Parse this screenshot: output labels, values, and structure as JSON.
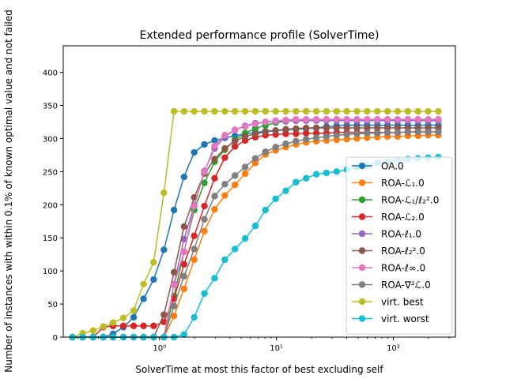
{
  "chart_data": {
    "type": "line",
    "title": "Extended performance profile (SolverTime)",
    "xlabel": "SolverTime at most this factor of best excluding self",
    "ylabel": "Number of instances with within 0.1% of known optimal value and not failed",
    "xscale": "log",
    "xlim": [
      0.15,
      340
    ],
    "ylim": [
      0,
      440
    ],
    "xticks": [
      {
        "value": 1,
        "label": "10⁰"
      },
      {
        "value": 10,
        "label": "10¹"
      },
      {
        "value": 100,
        "label": "10²"
      }
    ],
    "yticks": [
      0,
      50,
      100,
      150,
      200,
      250,
      300,
      350,
      400
    ],
    "legend_position": "lower right",
    "x": [
      0.18,
      0.22,
      0.27,
      0.33,
      0.4,
      0.49,
      0.6,
      0.73,
      0.89,
      1.09,
      1.33,
      1.62,
      1.98,
      2.42,
      2.96,
      3.62,
      4.42,
      5.4,
      6.6,
      8.06,
      9.85,
      12.03,
      14.7,
      17.96,
      21.94,
      26.81,
      32.76,
      40.02,
      48.9,
      59.74,
      72.99,
      89.18,
      108.96,
      133.13,
      162.65,
      198.72,
      242.8
    ],
    "series": [
      {
        "name": "OA.0",
        "color": "#1f77b4",
        "values": [
          0,
          0,
          0,
          0,
          5,
          15,
          30,
          58,
          87,
          132,
          192,
          242,
          279,
          291,
          297,
          301,
          304,
          307,
          309,
          311,
          312,
          313,
          314,
          315,
          316,
          318,
          319,
          320,
          320,
          320,
          320,
          320,
          320,
          320,
          320,
          320,
          320
        ]
      },
      {
        "name": "ROA-ℒ₁.0",
        "color": "#ff7f0e",
        "values": [
          0,
          0,
          0,
          0,
          0,
          0,
          0,
          0,
          0,
          0,
          32,
          73,
          117,
          160,
          193,
          214,
          230,
          247,
          263,
          276,
          282,
          287,
          291,
          294,
          296,
          297,
          298,
          299,
          300,
          301,
          302,
          303,
          303,
          304,
          304,
          305,
          305
        ]
      },
      {
        "name": "ROA-ℒ₁/ℓ₂².0",
        "color": "#2ca02c",
        "values": [
          0,
          0,
          0,
          0,
          0,
          0,
          0,
          0,
          0,
          0,
          62,
          129,
          192,
          233,
          265,
          283,
          298,
          308,
          315,
          320,
          324,
          326,
          327,
          328,
          328,
          328,
          328,
          328,
          328,
          328,
          328,
          328,
          328,
          328,
          328,
          328,
          328
        ]
      },
      {
        "name": "ROA-ℒ₂.0",
        "color": "#d62728",
        "values": [
          0,
          0,
          0,
          15,
          17,
          17,
          17,
          17,
          17,
          23,
          58,
          110,
          153,
          198,
          240,
          271,
          288,
          297,
          302,
          305,
          306,
          307,
          307,
          308,
          308,
          308,
          309,
          309,
          309,
          309,
          309,
          309,
          309,
          310,
          310,
          310,
          310
        ]
      },
      {
        "name": "ROA-ℓ₁.0",
        "color": "#9467bd",
        "values": [
          0,
          0,
          0,
          0,
          0,
          0,
          0,
          0,
          0,
          0,
          80,
          148,
          199,
          251,
          285,
          303,
          313,
          319,
          323,
          325,
          326,
          326,
          327,
          327,
          327,
          327,
          327,
          327,
          327,
          327,
          327,
          327,
          327,
          327,
          327,
          327,
          327
        ]
      },
      {
        "name": "ROA-ℓ₂².0",
        "color": "#8c564b",
        "values": [
          0,
          0,
          0,
          0,
          0,
          0,
          0,
          0,
          0,
          34,
          98,
          167,
          211,
          247,
          269,
          285,
          296,
          303,
          307,
          310,
          312,
          314,
          315,
          316,
          316,
          316,
          316,
          316,
          316,
          316,
          316,
          316,
          316,
          316,
          316,
          316,
          316
        ]
      },
      {
        "name": "ROA-ℓ∞.0",
        "color": "#e377c2",
        "values": [
          0,
          0,
          0,
          0,
          0,
          0,
          0,
          0,
          0,
          0,
          79,
          129,
          198,
          250,
          289,
          305,
          313,
          318,
          322,
          325,
          327,
          328,
          329,
          329,
          329,
          329,
          329,
          329,
          329,
          329,
          329,
          329,
          329,
          329,
          329,
          329,
          329
        ]
      },
      {
        "name": "ROA-∇²ℒ.0",
        "color": "#7f7f7f",
        "values": [
          0,
          0,
          0,
          0,
          0,
          0,
          0,
          0,
          0,
          0,
          47,
          92,
          133,
          178,
          213,
          231,
          244,
          257,
          270,
          280,
          287,
          292,
          296,
          299,
          301,
          303,
          305,
          306,
          307,
          308,
          308,
          309,
          309,
          310,
          310,
          310,
          310
        ]
      },
      {
        "name": "virt. best",
        "color": "#bcbd22",
        "values": [
          0,
          6,
          10,
          16,
          22,
          29,
          40,
          80,
          113,
          218,
          341,
          341,
          341,
          341,
          341,
          341,
          341,
          341,
          341,
          341,
          341,
          341,
          341,
          341,
          341,
          341,
          341,
          341,
          341,
          341,
          341,
          341,
          341,
          341,
          341,
          341,
          341
        ]
      },
      {
        "name": "virt. worst",
        "color": "#17becf",
        "values": [
          0,
          0,
          0,
          0,
          0,
          0,
          0,
          0,
          0,
          0,
          0,
          4,
          30,
          66,
          89,
          117,
          133,
          149,
          168,
          192,
          209,
          221,
          234,
          240,
          246,
          248,
          250,
          253,
          256,
          259,
          263,
          265,
          267,
          269,
          270,
          271,
          272
        ]
      }
    ]
  }
}
